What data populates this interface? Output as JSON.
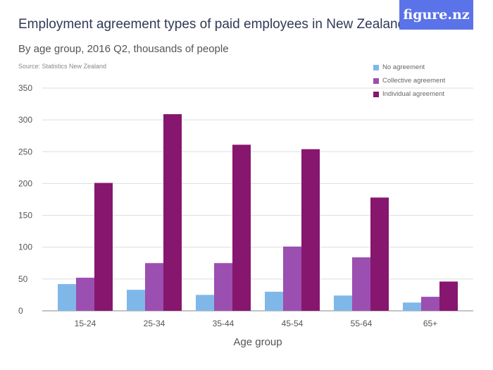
{
  "title": "Employment agreement types of paid employees in New Zealand",
  "subtitle": "By age group, 2016 Q2, thousands of people",
  "source": "Source: Statistics New Zealand",
  "logo": "figure.nz",
  "chart_data": {
    "type": "bar",
    "xlabel": "Age group",
    "ylabel": "",
    "ylim": [
      0,
      350
    ],
    "yticks": [
      "0",
      "50",
      "100",
      "150",
      "200",
      "250",
      "300",
      "350"
    ],
    "grid": true,
    "legend_position": "top-right",
    "categories": [
      "15-24",
      "25-34",
      "35-44",
      "45-54",
      "55-64",
      "65+"
    ],
    "series": [
      {
        "name": "No agreement",
        "color": "#7fb8e8",
        "values": [
          42,
          33,
          25,
          30,
          24,
          13
        ]
      },
      {
        "name": "Collective agreement",
        "color": "#9b4fb0",
        "values": [
          52,
          75,
          75,
          101,
          84,
          22
        ]
      },
      {
        "name": "Individual agreement",
        "color": "#87166f",
        "values": [
          201,
          309,
          261,
          254,
          178,
          46
        ]
      }
    ]
  }
}
